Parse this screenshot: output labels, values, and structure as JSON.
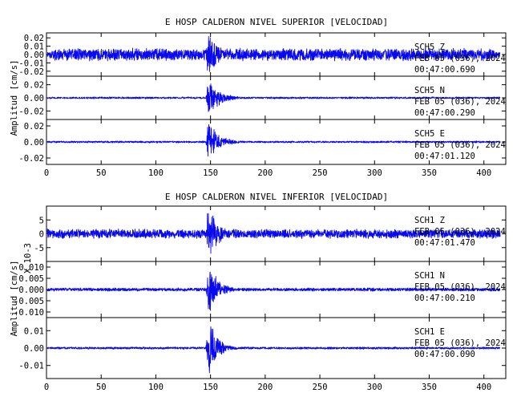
{
  "chart_data": [
    {
      "type": "line",
      "title": "E HOSP CALDERON NIVEL SUPERIOR [VELOCIDAD]",
      "ylabel": "Amplitud [cm/s]",
      "xlim": [
        0,
        420
      ],
      "x_ticks": [
        "0",
        "50",
        "100",
        "150",
        "200",
        "250",
        "300",
        "350",
        "400"
      ],
      "x_tick_values": [
        0,
        50,
        100,
        150,
        200,
        250,
        300,
        350,
        400
      ],
      "panels": [
        {
          "station": "SCH5",
          "component": "Z",
          "info": [
            "SCH5 Z",
            "FEB 05 (036), 2024",
            "00:47:00.690"
          ],
          "ylim": [
            -0.026,
            0.026
          ],
          "y_ticks": [
            "0.02",
            "0.01",
            "0.00",
            "-0.01",
            "-0.02"
          ],
          "y_tick_values": [
            0.02,
            0.01,
            0.0,
            -0.01,
            -0.02
          ],
          "background_amplitude": 0.008,
          "event_peak": 0.024,
          "event_onset_s": 147,
          "coda_decay_s": 12,
          "record_end_s": 415,
          "taper_end": true
        },
        {
          "station": "SCH5",
          "component": "N",
          "info": [
            "SCH5 N",
            "FEB 05 (036), 2024",
            "00:47:00.290"
          ],
          "ylim": [
            -0.033,
            0.033
          ],
          "y_ticks": [
            "0.02",
            "0.00",
            "-0.02"
          ],
          "y_tick_values": [
            0.02,
            0.0,
            -0.02
          ],
          "background_amplitude": 0.0016,
          "event_peak": 0.027,
          "event_onset_s": 147,
          "coda_decay_s": 10,
          "record_end_s": 415,
          "taper_end": false
        },
        {
          "station": "SCH5",
          "component": "E",
          "info": [
            "SCH5 E",
            "FEB 05 (036), 2024",
            "00:47:01.120"
          ],
          "ylim": [
            -0.028,
            0.028
          ],
          "y_ticks": [
            "0.02",
            "0.00",
            "-0.02"
          ],
          "y_tick_values": [
            0.02,
            0.0,
            -0.02
          ],
          "background_amplitude": 0.0013,
          "event_peak": 0.024,
          "event_onset_s": 147,
          "coda_decay_s": 10,
          "record_end_s": 415,
          "taper_end": false
        }
      ]
    },
    {
      "type": "line",
      "title": "E HOSP CALDERON NIVEL INFERIOR [VELOCIDAD]",
      "ylabel": "Amplitud [cm/s]",
      "scale_label": "X 10-3",
      "xlim": [
        0,
        420
      ],
      "x_ticks": [
        "0",
        "50",
        "100",
        "150",
        "200",
        "250",
        "300",
        "350",
        "400"
      ],
      "x_tick_values": [
        0,
        50,
        100,
        150,
        200,
        250,
        300,
        350,
        400
      ],
      "panels": [
        {
          "station": "SCH1",
          "component": "Z",
          "info": [
            "SCH1 Z",
            "FEB 05 (036), 2024",
            "00:47:01.470"
          ],
          "ylim": [
            -10,
            10
          ],
          "y_ticks": [
            "5",
            "0",
            "-5"
          ],
          "y_tick_values": [
            5,
            0,
            -5
          ],
          "background_amplitude": 1.8,
          "event_peak": 9.5,
          "event_onset_s": 147,
          "coda_decay_s": 9,
          "record_end_s": 415,
          "taper_end": false
        },
        {
          "station": "SCH1",
          "component": "N",
          "info": [
            "SCH1 N",
            "FEB 05 (036), 2024",
            "00:47:00.210"
          ],
          "ylim": [
            -0.0125,
            0.0125
          ],
          "y_ticks": [
            "0.010",
            "0.005",
            "0.000",
            "-0.005",
            "-0.010"
          ],
          "y_tick_values": [
            0.01,
            0.005,
            0.0,
            -0.005,
            -0.01
          ],
          "background_amplitude": 0.0008,
          "event_peak": 0.0105,
          "event_onset_s": 147,
          "coda_decay_s": 9,
          "record_end_s": 415,
          "taper_end": false
        },
        {
          "station": "SCH1",
          "component": "E",
          "info": [
            "SCH1 E",
            "FEB 05 (036), 2024",
            "00:47:00.090"
          ],
          "ylim": [
            -0.0175,
            0.0175
          ],
          "y_ticks": [
            "0.01",
            "0.00",
            "-0.01"
          ],
          "y_tick_values": [
            0.01,
            0.0,
            -0.01
          ],
          "background_amplitude": 0.0007,
          "event_peak": 0.016,
          "event_onset_s": 147,
          "coda_decay_s": 8,
          "record_end_s": 415,
          "taper_end": false
        }
      ]
    }
  ]
}
